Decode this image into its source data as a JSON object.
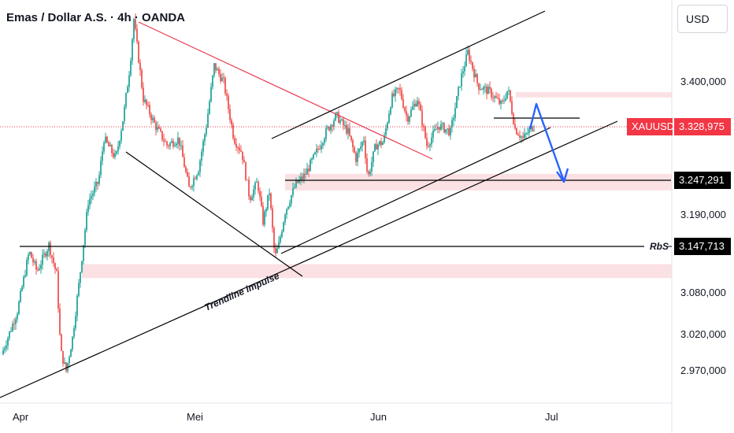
{
  "header": {
    "title": "Emas / Dollar A.S. · 4h · OANDA",
    "currency": "USD"
  },
  "colors": {
    "up": "#26a69a",
    "down": "#ef5350",
    "zone": "#fbe1e3",
    "resistance_line": "#e8384f",
    "trend_line": "#000000",
    "projection": "#2962ff",
    "price_badge": "#f23645",
    "dark_badge": "#000000"
  },
  "chart_data": {
    "type": "candlestick",
    "title": "Emas / Dollar A.S. · 4h · OANDA",
    "y_range": [
      2920,
      3530
    ],
    "y_ticks": [
      "3.400,000",
      "3.328,975",
      "3.247,291",
      "3.190,000",
      "3.147,713",
      "3.080,000",
      "3.020,000",
      "2.970,000"
    ],
    "x_ticks": [
      "Apr",
      "Mei",
      "Jun",
      "Jul"
    ],
    "path": [
      [
        0,
        2985
      ],
      [
        2,
        3050
      ],
      [
        3.5,
        3140
      ],
      [
        4.5,
        3110
      ],
      [
        6,
        3150
      ],
      [
        7,
        3105
      ],
      [
        7.5,
        2990
      ],
      [
        8.2,
        2960
      ],
      [
        9,
        3010
      ],
      [
        9.8,
        3090
      ],
      [
        11,
        3215
      ],
      [
        12.3,
        3245
      ],
      [
        13,
        3310
      ],
      [
        14.5,
        3280
      ],
      [
        15.5,
        3345
      ],
      [
        16.3,
        3420
      ],
      [
        16.8,
        3490
      ],
      [
        17.3,
        3440
      ],
      [
        18,
        3370
      ],
      [
        19.5,
        3330
      ],
      [
        21,
        3300
      ],
      [
        22.5,
        3310
      ],
      [
        23.8,
        3235
      ],
      [
        25,
        3265
      ],
      [
        26,
        3330
      ],
      [
        27,
        3420
      ],
      [
        28.2,
        3395
      ],
      [
        29.5,
        3310
      ],
      [
        30.5,
        3290
      ],
      [
        31.5,
        3220
      ],
      [
        32.5,
        3245
      ],
      [
        33.2,
        3185
      ],
      [
        34,
        3230
      ],
      [
        34.7,
        3130
      ],
      [
        35.2,
        3150
      ],
      [
        36,
        3200
      ],
      [
        37.3,
        3240
      ],
      [
        38.5,
        3255
      ],
      [
        40,
        3290
      ],
      [
        41.2,
        3320
      ],
      [
        42.5,
        3345
      ],
      [
        44,
        3320
      ],
      [
        45,
        3280
      ],
      [
        46,
        3310
      ],
      [
        46.5,
        3250
      ],
      [
        47.5,
        3300
      ],
      [
        48.5,
        3305
      ],
      [
        49.5,
        3370
      ],
      [
        50.5,
        3385
      ],
      [
        51.5,
        3340
      ],
      [
        52.8,
        3370
      ],
      [
        54,
        3300
      ],
      [
        55.5,
        3330
      ],
      [
        57,
        3320
      ],
      [
        58.3,
        3400
      ],
      [
        59.2,
        3440
      ],
      [
        60.5,
        3390
      ],
      [
        62,
        3380
      ],
      [
        63.5,
        3360
      ],
      [
        64.3,
        3385
      ],
      [
        65.2,
        3325
      ],
      [
        66.2,
        3310
      ],
      [
        67.5,
        3328.975
      ]
    ],
    "current_price": 3328.975,
    "symbol": "XAUUSD",
    "levels": [
      {
        "label": "",
        "value": 3247.291
      },
      {
        "label": "RbS",
        "value": 3147.713
      }
    ],
    "zones": [
      [
        3372,
        3380
      ],
      [
        3232,
        3257
      ],
      [
        3100,
        3121
      ]
    ],
    "annotation": "Trendline impulse"
  }
}
